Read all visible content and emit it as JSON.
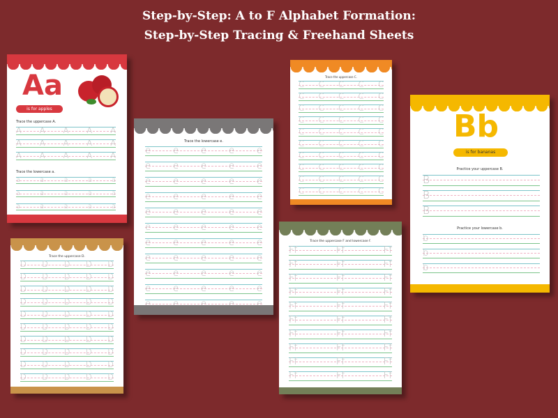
{
  "title_line1": "Step-by-Step: A to F Alphabet Formation:",
  "title_line2": "Step-by-Step Tracing & Freehand Sheets",
  "colors": {
    "background": "#7d2a2c",
    "red": "#d8383f",
    "gray": "#7a7777",
    "orange": "#f08a24",
    "yellow": "#f5b800",
    "tan": "#c9934a",
    "olive": "#737f58"
  },
  "sheets": {
    "a": {
      "big": "Aa",
      "pill": "is for apples",
      "label_upper": "Trace the uppercase A.",
      "label_lower": "Trace the lowercase a.",
      "upper": "A",
      "lower": "a",
      "image": "apples"
    },
    "e": {
      "label": "Trace the lowercase e.",
      "letter": "e"
    },
    "c": {
      "label": "Trace the uppercase C.",
      "letter": "C"
    },
    "b": {
      "big": "Bb",
      "pill": "is for bananas",
      "label_upper": "Practice your uppercase B.",
      "label_lower": "Practice your lowercase b.",
      "upper": "B",
      "lower": "b"
    },
    "d": {
      "label": "Trace the uppercase D.",
      "letter": "D"
    },
    "f": {
      "label": "Trace the uppercase F and lowercase f.",
      "letter": "Ff"
    }
  }
}
